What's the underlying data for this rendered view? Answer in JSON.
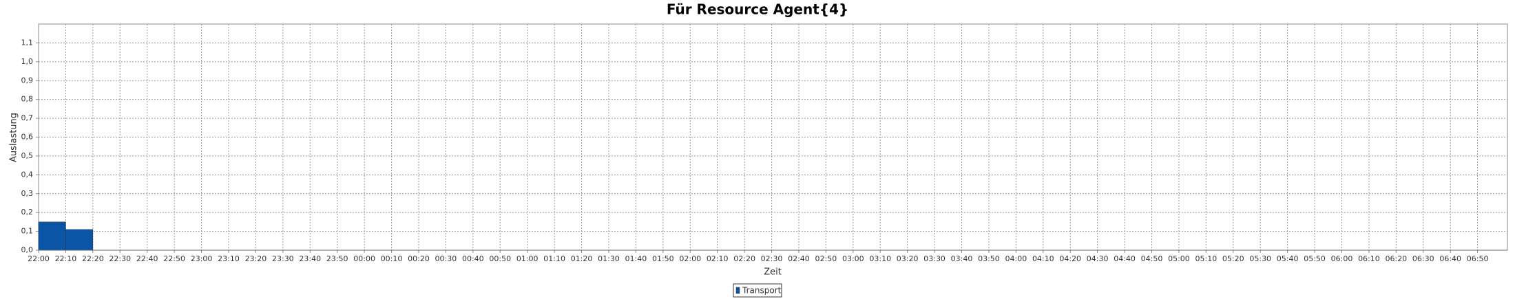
{
  "chart_data": {
    "type": "histogram",
    "title": "Für Resource Agent{4}",
    "x_label": "Zeit",
    "y_label": "Auslastung",
    "bins": [
      0,
      10,
      20
    ],
    "series": [
      {
        "name": "Transport",
        "color": "#0a55a5",
        "values": [
          0.15,
          0.11
        ]
      }
    ],
    "xlim": [
      0,
      541
    ],
    "ylim": [
      0,
      1.2
    ],
    "xticks": [
      {
        "value": 0,
        "label": "22:00"
      },
      {
        "value": 10,
        "label": "22:10"
      },
      {
        "value": 20,
        "label": "22:20"
      },
      {
        "value": 30,
        "label": "22:30"
      },
      {
        "value": 40,
        "label": "22:40"
      },
      {
        "value": 50,
        "label": "22:50"
      },
      {
        "value": 60,
        "label": "23:00"
      },
      {
        "value": 70,
        "label": "23:10"
      },
      {
        "value": 80,
        "label": "23:20"
      },
      {
        "value": 90,
        "label": "23:30"
      },
      {
        "value": 100,
        "label": "23:40"
      },
      {
        "value": 110,
        "label": "23:50"
      },
      {
        "value": 120,
        "label": "00:00"
      },
      {
        "value": 130,
        "label": "00:10"
      },
      {
        "value": 140,
        "label": "00:20"
      },
      {
        "value": 150,
        "label": "00:30"
      },
      {
        "value": 160,
        "label": "00:40"
      },
      {
        "value": 170,
        "label": "00:50"
      },
      {
        "value": 180,
        "label": "01:00"
      },
      {
        "value": 190,
        "label": "01:10"
      },
      {
        "value": 200,
        "label": "01:20"
      },
      {
        "value": 210,
        "label": "01:30"
      },
      {
        "value": 220,
        "label": "01:40"
      },
      {
        "value": 230,
        "label": "01:50"
      },
      {
        "value": 240,
        "label": "02:00"
      },
      {
        "value": 250,
        "label": "02:10"
      },
      {
        "value": 260,
        "label": "02:20"
      },
      {
        "value": 270,
        "label": "02:30"
      },
      {
        "value": 280,
        "label": "02:40"
      },
      {
        "value": 290,
        "label": "02:50"
      },
      {
        "value": 300,
        "label": "03:00"
      },
      {
        "value": 310,
        "label": "03:10"
      },
      {
        "value": 320,
        "label": "03:20"
      },
      {
        "value": 330,
        "label": "03:30"
      },
      {
        "value": 340,
        "label": "03:40"
      },
      {
        "value": 350,
        "label": "03:50"
      },
      {
        "value": 360,
        "label": "04:00"
      },
      {
        "value": 370,
        "label": "04:10"
      },
      {
        "value": 380,
        "label": "04:20"
      },
      {
        "value": 390,
        "label": "04:30"
      },
      {
        "value": 400,
        "label": "04:40"
      },
      {
        "value": 410,
        "label": "04:50"
      },
      {
        "value": 420,
        "label": "05:00"
      },
      {
        "value": 430,
        "label": "05:10"
      },
      {
        "value": 440,
        "label": "05:20"
      },
      {
        "value": 450,
        "label": "05:30"
      },
      {
        "value": 460,
        "label": "05:40"
      },
      {
        "value": 470,
        "label": "05:50"
      },
      {
        "value": 480,
        "label": "06:00"
      },
      {
        "value": 490,
        "label": "06:10"
      },
      {
        "value": 500,
        "label": "06:20"
      },
      {
        "value": 510,
        "label": "06:30"
      },
      {
        "value": 520,
        "label": "06:40"
      },
      {
        "value": 530,
        "label": "06:50"
      }
    ],
    "yticks": [
      {
        "value": 0,
        "label": "0,0"
      },
      {
        "value": 0.1,
        "label": "0,1"
      },
      {
        "value": 0.2,
        "label": "0,2"
      },
      {
        "value": 0.3,
        "label": "0,3"
      },
      {
        "value": 0.4,
        "label": "0,4"
      },
      {
        "value": 0.5,
        "label": "0,5"
      },
      {
        "value": 0.6,
        "label": "0,6"
      },
      {
        "value": 0.7,
        "label": "0,7"
      },
      {
        "value": 0.8,
        "label": "0,8"
      },
      {
        "value": 0.9,
        "label": "0,9"
      },
      {
        "value": 1.0,
        "label": "1,0"
      },
      {
        "value": 1.1,
        "label": "1,1"
      }
    ],
    "grid": true,
    "legend": "bottom"
  }
}
